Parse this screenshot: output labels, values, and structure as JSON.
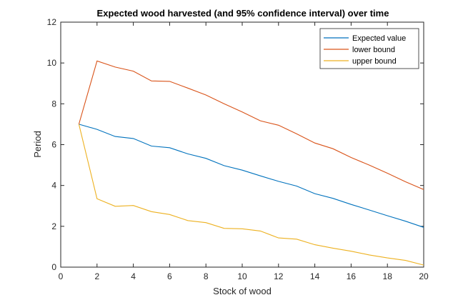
{
  "chart_data": {
    "type": "line",
    "title": "Expected wood harvested (and 95% confidence interval) over time",
    "xlabel": "Stock of wood",
    "ylabel": "Period",
    "xlim": [
      0,
      20
    ],
    "ylim": [
      0,
      12
    ],
    "xticks": [
      0,
      2,
      4,
      6,
      8,
      10,
      12,
      14,
      16,
      18,
      20
    ],
    "yticks": [
      0,
      2,
      4,
      6,
      8,
      10,
      12
    ],
    "grid": false,
    "legend_position": "top-right",
    "x": [
      1,
      2,
      3,
      4,
      5,
      6,
      7,
      8,
      9,
      10,
      11,
      12,
      13,
      14,
      15,
      16,
      17,
      18,
      19,
      20
    ],
    "series": [
      {
        "name": "Expected value",
        "color": "#0072BD",
        "values": [
          7.0,
          6.75,
          6.4,
          6.3,
          5.93,
          5.85,
          5.55,
          5.33,
          4.97,
          4.75,
          4.47,
          4.2,
          3.97,
          3.6,
          3.37,
          3.07,
          2.8,
          2.52,
          2.25,
          1.95
        ]
      },
      {
        "name": "lower bound",
        "color": "#D95319",
        "values": [
          7.0,
          10.1,
          9.8,
          9.6,
          9.12,
          9.1,
          8.77,
          8.43,
          8.0,
          7.6,
          7.17,
          6.95,
          6.53,
          6.08,
          5.8,
          5.37,
          5.0,
          4.6,
          4.18,
          3.8
        ]
      },
      {
        "name": "upper bound",
        "color": "#EDB120",
        "values": [
          7.0,
          3.35,
          2.98,
          3.02,
          2.72,
          2.58,
          2.28,
          2.18,
          1.9,
          1.88,
          1.77,
          1.43,
          1.37,
          1.1,
          0.93,
          0.78,
          0.6,
          0.45,
          0.33,
          0.1
        ]
      }
    ]
  }
}
